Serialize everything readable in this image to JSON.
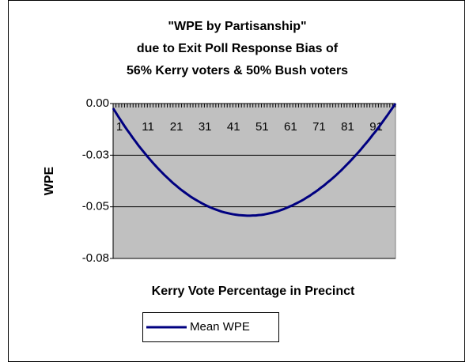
{
  "chart_data": {
    "type": "line",
    "title": [
      "\"WPE by Partisanship\"",
      "due to Exit Poll Response Bias of",
      "56% Kerry voters & 50% Bush voters"
    ],
    "xlabel": "Kerry Vote Percentage in Precinct",
    "ylabel": "WPE",
    "categories": [
      "1",
      null,
      null,
      null,
      null,
      null,
      null,
      null,
      null,
      null,
      "11",
      null,
      null,
      null,
      null,
      null,
      null,
      null,
      null,
      null,
      "21",
      null,
      null,
      null,
      null,
      null,
      null,
      null,
      null,
      null,
      "31",
      null,
      null,
      null,
      null,
      null,
      null,
      null,
      null,
      null,
      "41",
      null,
      null,
      null,
      null,
      null,
      null,
      null,
      null,
      null,
      "51",
      null,
      null,
      null,
      null,
      null,
      null,
      null,
      null,
      null,
      "61",
      null,
      null,
      null,
      null,
      null,
      null,
      null,
      null,
      null,
      "71",
      null,
      null,
      null,
      null,
      null,
      null,
      null,
      null,
      null,
      "81",
      null,
      null,
      null,
      null,
      null,
      null,
      null,
      null,
      null,
      "91",
      null,
      null,
      null,
      null,
      null,
      null,
      null,
      null,
      null
    ],
    "series": [
      {
        "name": "Mean WPE",
        "color": "#000080",
        "values": [
          -0.0023,
          -0.0045,
          -0.0067,
          -0.0088,
          -0.0109,
          -0.0129,
          -0.0148,
          -0.0168,
          -0.0186,
          -0.0205,
          -0.0222,
          -0.0239,
          -0.0256,
          -0.0272,
          -0.0288,
          -0.0303,
          -0.0318,
          -0.0332,
          -0.0346,
          -0.0359,
          -0.0372,
          -0.0385,
          -0.0396,
          -0.0408,
          -0.0419,
          -0.0429,
          -0.0439,
          -0.0449,
          -0.0458,
          -0.0466,
          -0.0474,
          -0.0482,
          -0.0489,
          -0.0496,
          -0.0502,
          -0.0508,
          -0.0513,
          -0.0518,
          -0.0523,
          -0.0527,
          -0.053,
          -0.0533,
          -0.0536,
          -0.0538,
          -0.054,
          -0.0541,
          -0.0542,
          -0.0543,
          -0.0543,
          -0.0542,
          -0.0542,
          -0.054,
          -0.0539,
          -0.0537,
          -0.0534,
          -0.0531,
          -0.0528,
          -0.0524,
          -0.052,
          -0.0515,
          -0.051,
          -0.0504,
          -0.0498,
          -0.0492,
          -0.0485,
          -0.0478,
          -0.0471,
          -0.0463,
          -0.0454,
          -0.0446,
          -0.0436,
          -0.0427,
          -0.0417,
          -0.0406,
          -0.0396,
          -0.0384,
          -0.0373,
          -0.0361,
          -0.0349,
          -0.0336,
          -0.0323,
          -0.0309,
          -0.0295,
          -0.0281,
          -0.0266,
          -0.0251,
          -0.0236,
          -0.022,
          -0.0203,
          -0.0187,
          -0.017,
          -0.0152,
          -0.0135,
          -0.0117,
          -0.0098,
          -0.0079,
          -0.006,
          -0.004,
          -0.002,
          0
        ]
      }
    ],
    "ylim": [
      -0.075,
      0
    ],
    "yticks": [
      {
        "value": 0,
        "label": "0.00"
      },
      {
        "value": -0.025,
        "label": "-0.03"
      },
      {
        "value": -0.05,
        "label": "-0.05"
      },
      {
        "value": -0.075,
        "label": "-0.08"
      }
    ],
    "grid": true,
    "plot_background": "#c0c0c0",
    "legend": "bottom"
  }
}
